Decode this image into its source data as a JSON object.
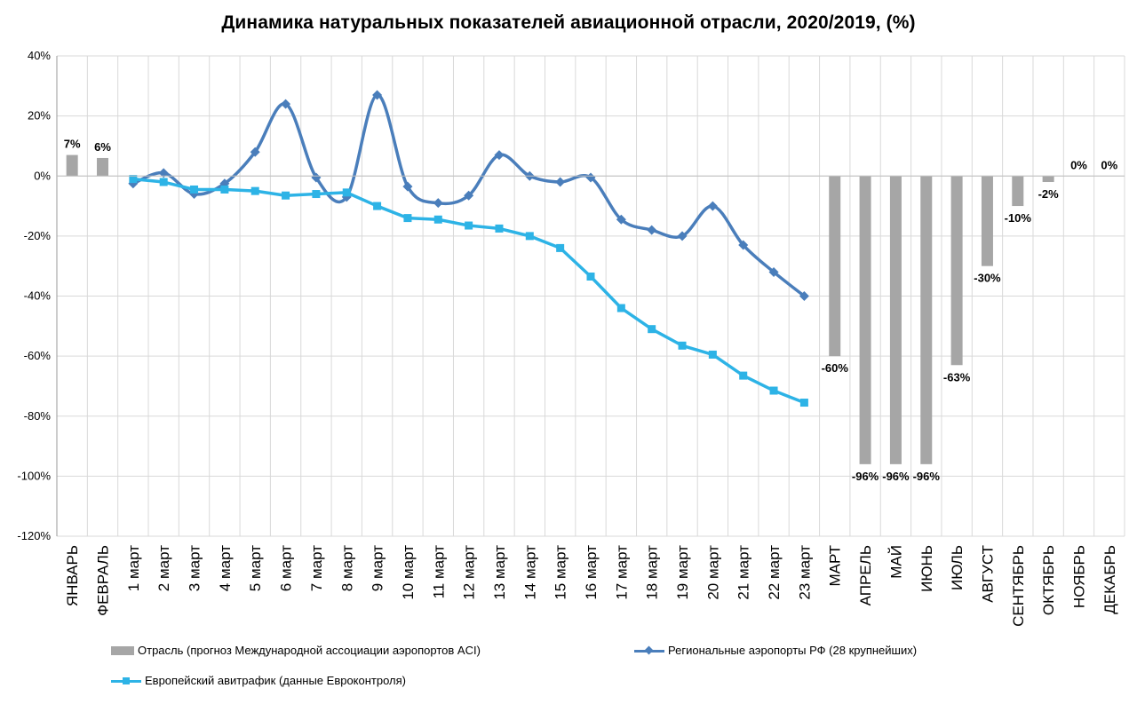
{
  "chart_data": {
    "type": "bar+line",
    "title": "Динамика натуральных показателей авиационной отрасли, 2020/2019, (%)",
    "ylim": [
      -120,
      40
    ],
    "y_ticks": [
      "40%",
      "20%",
      "0%",
      "-20%",
      "-40%",
      "-60%",
      "-80%",
      "-100%",
      "-120%"
    ],
    "categories": [
      "ЯНВАРЬ",
      "ФЕВРАЛЬ",
      "1 март",
      "2 март",
      "3 март",
      "4 март",
      "5 март",
      "6 март",
      "7 март",
      "8 март",
      "9 март",
      "10 март",
      "11 март",
      "12 март",
      "13 март",
      "14 март",
      "15 март",
      "16 март",
      "17 март",
      "18 март",
      "19 март",
      "20 март",
      "21 март",
      "22 март",
      "23 март",
      "МАРТ",
      "АПРЕЛЬ",
      "МАЙ",
      "ИЮНЬ",
      "ИЮЛЬ",
      "АВГУСТ",
      "СЕНТЯБРЬ",
      "ОКТЯБРЬ",
      "НОЯБРЬ",
      "ДЕКАБРЬ"
    ],
    "grid": true,
    "legend_position": "bottom",
    "series": [
      {
        "name": "Отрасль (прогноз Международной ассоциации аэропортов ACI)",
        "kind": "bar",
        "color": "#a6a6a6",
        "values": [
          7,
          6,
          null,
          null,
          null,
          null,
          null,
          null,
          null,
          null,
          null,
          null,
          null,
          null,
          null,
          null,
          null,
          null,
          null,
          null,
          null,
          null,
          null,
          null,
          null,
          -60,
          -96,
          -96,
          -96,
          -63,
          -30,
          -10,
          -2,
          0,
          0
        ],
        "labels": [
          "7%",
          "6%",
          "",
          "",
          "",
          "",
          "",
          "",
          "",
          "",
          "",
          "",
          "",
          "",
          "",
          "",
          "",
          "",
          "",
          "",
          "",
          "",
          "",
          "",
          "",
          "-60%",
          "-96%",
          "-96%",
          "-96%",
          "-63%",
          "-30%",
          "-10%",
          "-2%",
          "0%",
          "0%"
        ]
      },
      {
        "name": "Региональные аэропорты РФ (28 крупнейших)",
        "kind": "line",
        "marker": "diamond",
        "color": "#4a7ebb",
        "values": [
          null,
          null,
          -2.5,
          1,
          -6,
          -2.5,
          8,
          24,
          -0.5,
          -7,
          27,
          -3.5,
          -9,
          -6.5,
          7,
          0,
          -2,
          -0.5,
          -14.5,
          -18,
          -20,
          -10,
          -23,
          -32,
          -40,
          null,
          null,
          null,
          null,
          null,
          null,
          null,
          null,
          null,
          null
        ]
      },
      {
        "name": "Европейский авитрафик (данные Евроконтроля)",
        "kind": "line",
        "marker": "square",
        "color": "#2db3e6",
        "values": [
          null,
          null,
          -1,
          -2,
          -4.5,
          -4.5,
          -5,
          -6.5,
          -6,
          -5.5,
          -10,
          -14,
          -14.5,
          -16.5,
          -17.5,
          -20,
          -24,
          -33.5,
          -44,
          -51,
          -56.5,
          -59.5,
          -66.5,
          -71.5,
          -75.5,
          null,
          null,
          null,
          null,
          null,
          null,
          null,
          null,
          null,
          null
        ]
      }
    ]
  },
  "legend": {
    "items": [
      "Отрасль (прогноз Международной ассоциации аэропортов ACI)",
      "Региональные аэропорты РФ (28 крупнейших)",
      "Европейский авитрафик (данные Евроконтроля)"
    ]
  }
}
